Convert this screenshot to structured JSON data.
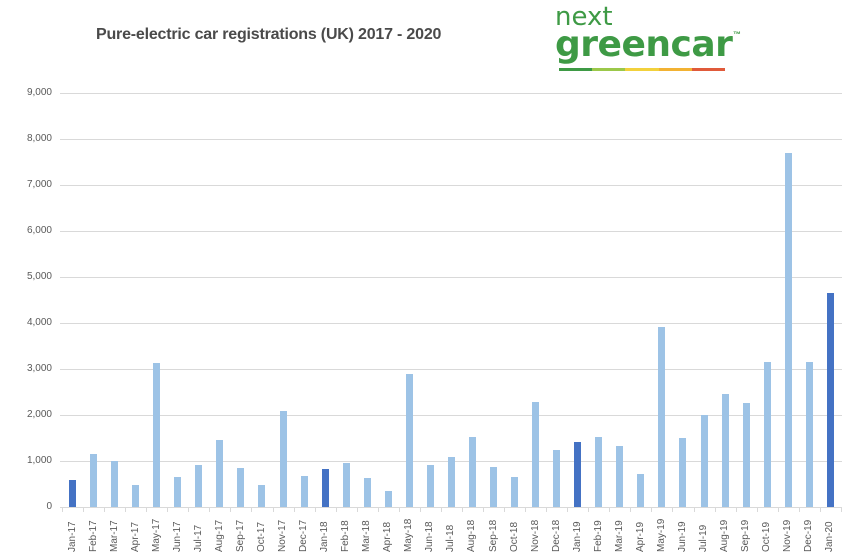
{
  "header": {
    "title": "Pure-electric car registrations (UK) 2017 - 2020",
    "logo_line1": "next",
    "logo_line2": "greencar",
    "logo_tm": "™",
    "logo_bar_colors": [
      "#3e9a45",
      "#9bc84a",
      "#f2d13c",
      "#f2b233",
      "#e05a3a"
    ]
  },
  "colors": {
    "highlight_bar": "#4472c4",
    "regular_bar": "#9dc3e6",
    "gridline": "#d9d9d9",
    "axis_text": "#595959"
  },
  "chart_data": {
    "type": "bar",
    "title": "Pure-electric car registrations (UK) 2017 - 2020",
    "xlabel": "",
    "ylabel": "",
    "ylim": [
      0,
      9000
    ],
    "yticks": [
      "0",
      "1,000",
      "2,000",
      "3,000",
      "4,000",
      "5,000",
      "6,000",
      "7,000",
      "8,000",
      "9,000"
    ],
    "grid": true,
    "legend": null,
    "categories": [
      "Jan-17",
      "Feb-17",
      "Mar-17",
      "Apr-17",
      "May-17",
      "Jun-17",
      "Jul-17",
      "Aug-17",
      "Sep-17",
      "Oct-17",
      "Nov-17",
      "Dec-17",
      "Jan-18",
      "Feb-18",
      "Mar-18",
      "Apr-18",
      "May-18",
      "Jun-18",
      "Jul-18",
      "Aug-18",
      "Sep-18",
      "Oct-18",
      "Nov-18",
      "Dec-18",
      "Jan-19",
      "Feb-19",
      "Mar-19",
      "Apr-19",
      "May-19",
      "Jun-19",
      "Jul-19",
      "Aug-19",
      "Sep-19",
      "Oct-19",
      "Nov-19",
      "Dec-19",
      "Jan-20"
    ],
    "values": [
      590,
      1150,
      1000,
      480,
      3130,
      650,
      910,
      1460,
      850,
      480,
      2090,
      670,
      820,
      960,
      630,
      350,
      2890,
      910,
      1090,
      1530,
      870,
      660,
      2280,
      1240,
      1420,
      1530,
      1330,
      720,
      3920,
      1510,
      1990,
      2460,
      2260,
      3150,
      7700,
      3150,
      4650
    ],
    "highlighted": [
      "Jan-17",
      "Jan-18",
      "Jan-19",
      "Jan-20"
    ]
  }
}
